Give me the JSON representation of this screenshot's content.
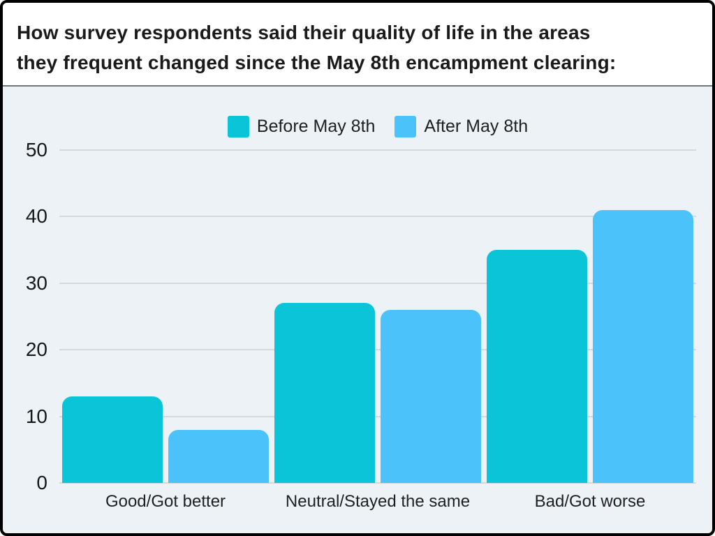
{
  "header": {
    "title_line1": "How survey respondents said their quality of life in the areas",
    "title_line2": "they frequent changed since the May 8th encampment clearing:"
  },
  "colors": {
    "frame_border": "#000000",
    "header_background": "#ffffff",
    "chart_background": "#ecf2f5",
    "gridline": "#d5d9dc",
    "title_text": "#1a1a1a",
    "axis_text": "#15181b",
    "series_before": "#0ac5d8",
    "series_after": "#4cc2fa"
  },
  "chart_data": {
    "type": "bar",
    "title": "How survey respondents said their quality of life in the areas they frequent changed since the May 8th encampment clearing:",
    "categories": [
      "Good/Got better",
      "Neutral/Stayed the same",
      "Bad/Got worse"
    ],
    "series": [
      {
        "name": "Before May 8th",
        "color": "#0ac5d8",
        "values": [
          13,
          27,
          35
        ]
      },
      {
        "name": "After May 8th",
        "color": "#4cc2fa",
        "values": [
          8,
          26,
          41
        ]
      }
    ],
    "xlabel": "",
    "ylabel": "",
    "ylim": [
      0,
      50
    ],
    "yticks": [
      0,
      10,
      20,
      30,
      40,
      50
    ],
    "grid": true,
    "legend_position": "top-center"
  }
}
